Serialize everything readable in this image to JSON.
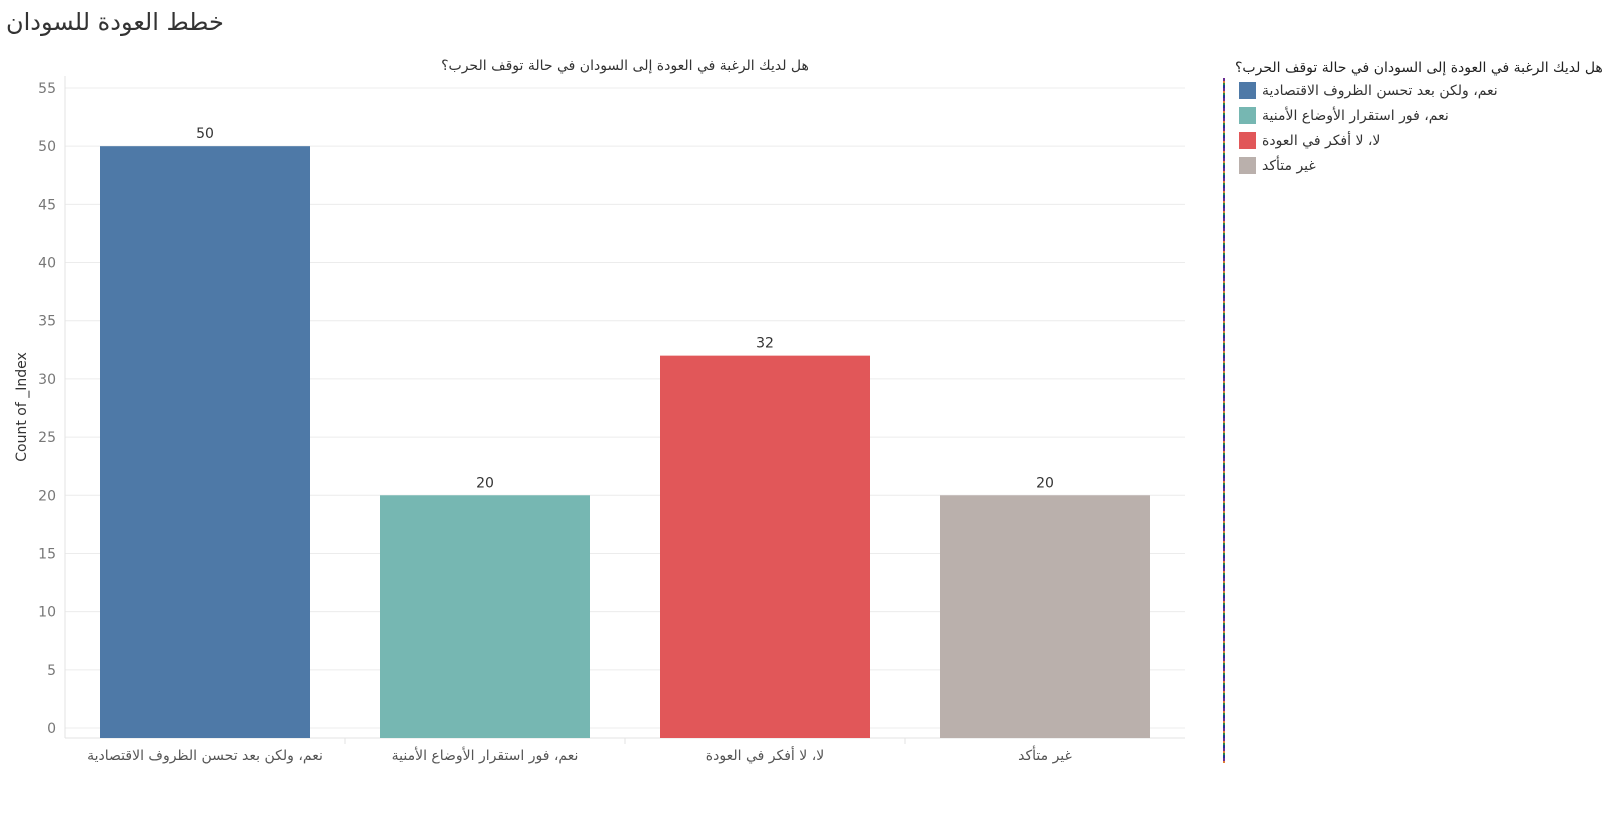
{
  "dashboard": {
    "title": "خطط العودة للسودان"
  },
  "legend": {
    "title": "هل لديك الرغبة في العودة إلى السودان في حالة توقف الحرب؟",
    "items": [
      {
        "label": "نعم، ولكن بعد تحسن الظروف الاقتصادية",
        "color": "#4e79a7"
      },
      {
        "label": "نعم، فور استقرار الأوضاع الأمنية",
        "color": "#76b7b2"
      },
      {
        "label": "لا، لا أفكر في العودة",
        "color": "#e15759"
      },
      {
        "label": "غير متأكد",
        "color": "#bab0ac"
      }
    ]
  },
  "chart_data": {
    "type": "bar",
    "title": "هل لديك الرغبة في العودة إلى السودان في حالة توقف الحرب؟",
    "xlabel": "",
    "ylabel": "Count of _Index",
    "categories": [
      "نعم، ولكن بعد تحسن الظروف الاقتصادية",
      "نعم، فور استقرار الأوضاع الأمنية",
      "لا، لا أفكر في العودة",
      "غير متأكد"
    ],
    "values": [
      50,
      20,
      32,
      20
    ],
    "colors": [
      "#4e79a7",
      "#76b7b2",
      "#e15759",
      "#bab0ac"
    ],
    "ylim": [
      0,
      55
    ],
    "yticks": [
      0,
      5,
      10,
      15,
      20,
      25,
      30,
      35,
      40,
      45,
      50,
      55
    ],
    "grid": true,
    "legend": "right"
  }
}
